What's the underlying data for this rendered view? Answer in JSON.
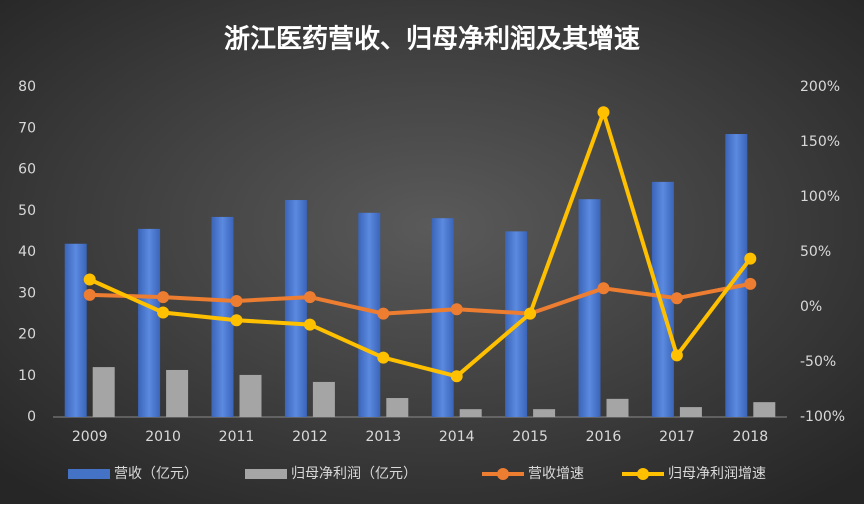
{
  "chart_data": {
    "type": "bar-line",
    "title": "浙江医药营收、归母净利润及其增速",
    "categories": [
      "2009",
      "2010",
      "2011",
      "2012",
      "2013",
      "2014",
      "2015",
      "2016",
      "2017",
      "2018"
    ],
    "series": [
      {
        "name": "营收（亿元）",
        "type": "bar",
        "color": "#4472c4",
        "values": [
          42,
          45.6,
          48.5,
          52.6,
          49.5,
          48.2,
          45,
          52.8,
          57,
          68.6
        ]
      },
      {
        "name": "归母净利润（亿元）",
        "type": "bar",
        "color": "#a5a5a5",
        "values": [
          12.1,
          11.4,
          10.2,
          8.5,
          4.6,
          1.9,
          1.9,
          4.4,
          2.4,
          3.6
        ]
      },
      {
        "name": "营收增速",
        "type": "line",
        "axis": "y2",
        "color": "#ed7d31",
        "values": [
          11,
          9,
          5.5,
          9,
          -6,
          -2,
          -6,
          17,
          8,
          21
        ]
      },
      {
        "name": "归母净利润增速",
        "type": "line",
        "axis": "y2",
        "color": "#ffc000",
        "values": [
          25,
          -5,
          -12,
          -16,
          -46,
          -63,
          -6,
          177,
          -44,
          44
        ]
      }
    ],
    "ylim": [
      0,
      80
    ],
    "yticks": [
      0,
      10,
      20,
      30,
      40,
      50,
      60,
      70,
      80
    ],
    "y2lim": [
      -100,
      200
    ],
    "y2ticks": [
      {
        "value": -100,
        "label": "-100%"
      },
      {
        "value": -50,
        "label": "-50%"
      },
      {
        "value": 0,
        "label": "0%"
      },
      {
        "value": 50,
        "label": "50%"
      },
      {
        "value": 100,
        "label": "100%"
      },
      {
        "value": 150,
        "label": "150%"
      },
      {
        "value": 200,
        "label": "200%"
      }
    ]
  }
}
